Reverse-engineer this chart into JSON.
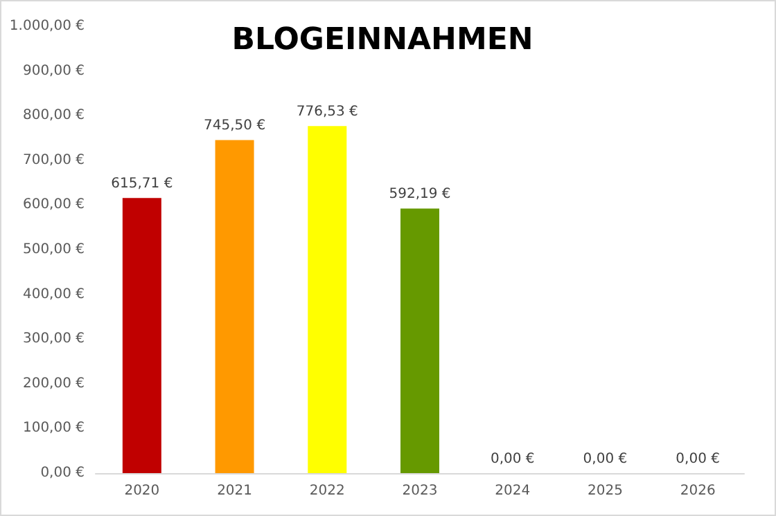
{
  "chart_data": {
    "type": "bar",
    "title": "BLOGEINNAHMEN",
    "categories": [
      "2020",
      "2021",
      "2022",
      "2023",
      "2024",
      "2025",
      "2026"
    ],
    "values": [
      615.71,
      745.5,
      776.53,
      592.19,
      0,
      0,
      0
    ],
    "colors": [
      "#c00000",
      "#ff9900",
      "#ffff00",
      "#669900",
      null,
      null,
      null
    ],
    "value_labels": [
      "615,71 €",
      "745,50 €",
      "776,53 €",
      "592,19 €",
      "0,00 €",
      "0,00 €",
      "0,00 €"
    ],
    "ylim": [
      0,
      1000
    ],
    "yticks": [
      {
        "value": 0,
        "label": "0,00 €"
      },
      {
        "value": 100,
        "label": "100,00 €"
      },
      {
        "value": 200,
        "label": "200,00 €"
      },
      {
        "value": 300,
        "label": "300,00 €"
      },
      {
        "value": 400,
        "label": "400,00 €"
      },
      {
        "value": 500,
        "label": "500,00 €"
      },
      {
        "value": 600,
        "label": "600,00 €"
      },
      {
        "value": 700,
        "label": "700,00 €"
      },
      {
        "value": 800,
        "label": "800,00 €"
      },
      {
        "value": 900,
        "label": "900,00 €"
      },
      {
        "value": 1000,
        "label": "1.000,00 €"
      }
    ],
    "grid": false
  }
}
